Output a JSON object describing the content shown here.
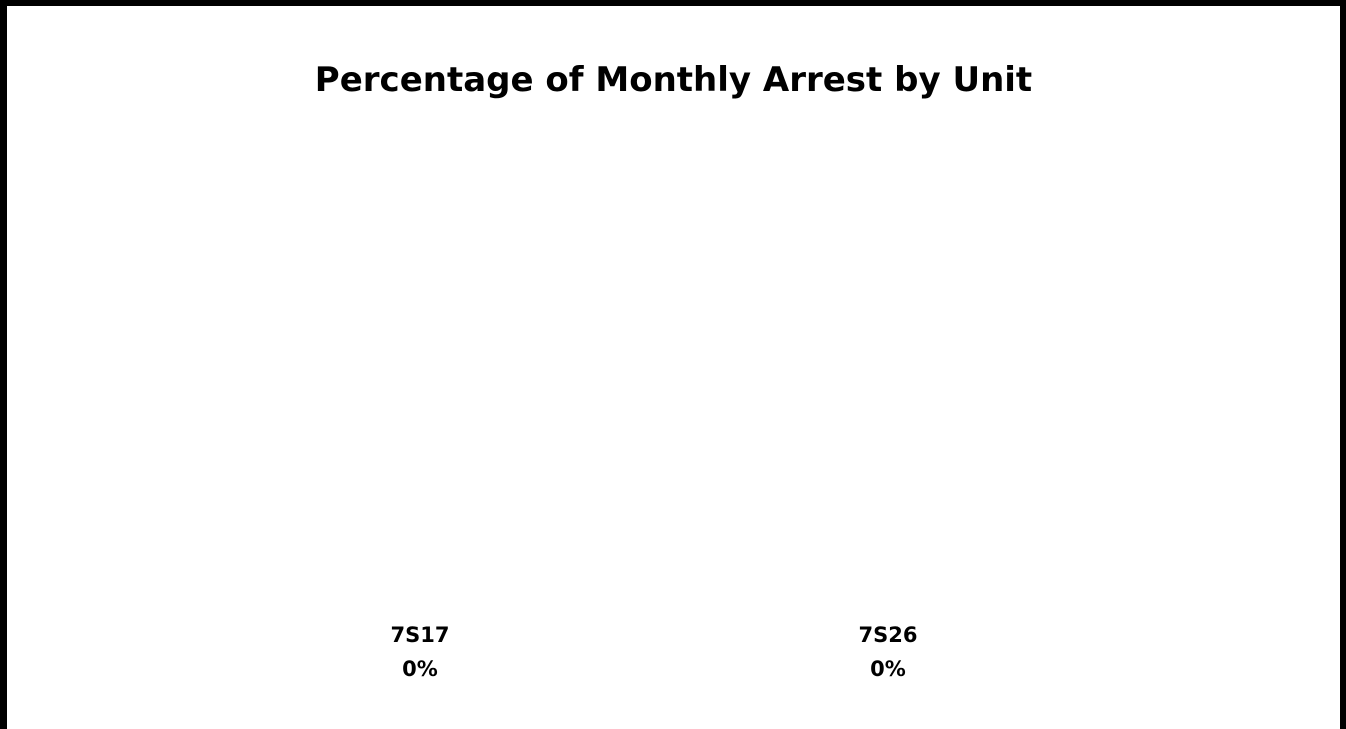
{
  "chart_data": {
    "type": "pie",
    "title": "Percentage of Monthly Arrest by Unit",
    "slices": [
      {
        "label": "7S17",
        "value": 0,
        "value_label": "0%"
      },
      {
        "label": "7S26",
        "value": 0,
        "value_label": "0%"
      }
    ],
    "legend": "none",
    "colors": {
      "border": "#000000",
      "background": "#ffffff",
      "text": "#000000"
    }
  }
}
